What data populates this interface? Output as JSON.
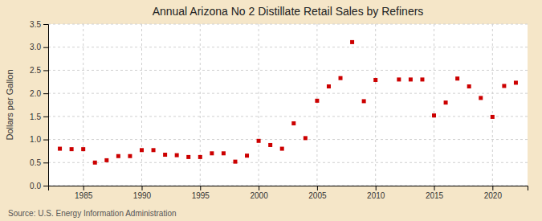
{
  "chart_data": {
    "type": "scatter",
    "title": "Annual Arizona No 2 Distillate Retail Sales by Refiners",
    "ylabel": "Dollars per Gallon",
    "source": "Source: U.S. Energy Information Administration",
    "color": "#cc0000",
    "marker": "square",
    "grid": true,
    "xlim": [
      1982,
      2023
    ],
    "ylim": [
      0.0,
      3.5
    ],
    "xticks": [
      1985,
      1990,
      1995,
      2000,
      2005,
      2010,
      2015,
      2020
    ],
    "yticks": [
      {
        "value": 0,
        "label": "0.0"
      },
      0.5,
      {
        "value": 1,
        "label": "1.0"
      },
      1.5,
      {
        "value": 2,
        "label": "2.0"
      },
      2.5,
      {
        "value": 3,
        "label": "3.0"
      },
      3.5
    ],
    "x": [
      1983,
      1984,
      1985,
      1986,
      1987,
      1988,
      1989,
      1990,
      1991,
      1992,
      1993,
      1994,
      1995,
      1996,
      1997,
      1998,
      1999,
      2000,
      2001,
      2002,
      2003,
      2004,
      2005,
      2006,
      2007,
      2008,
      2009,
      2010,
      2012,
      2013,
      2014,
      2015,
      2016,
      2017,
      2018,
      2019,
      2020,
      2021,
      2022
    ],
    "values": [
      0.8,
      0.79,
      0.79,
      0.5,
      0.55,
      0.64,
      0.64,
      0.77,
      0.77,
      0.67,
      0.66,
      0.62,
      0.62,
      0.7,
      0.7,
      0.52,
      0.65,
      0.97,
      0.88,
      0.8,
      1.35,
      1.03,
      1.84,
      2.15,
      2.33,
      3.11,
      1.83,
      2.29,
      2.3,
      2.3,
      2.3,
      1.52,
      1.8,
      2.32,
      2.15,
      1.9,
      1.49,
      2.16,
      2.23
    ]
  }
}
